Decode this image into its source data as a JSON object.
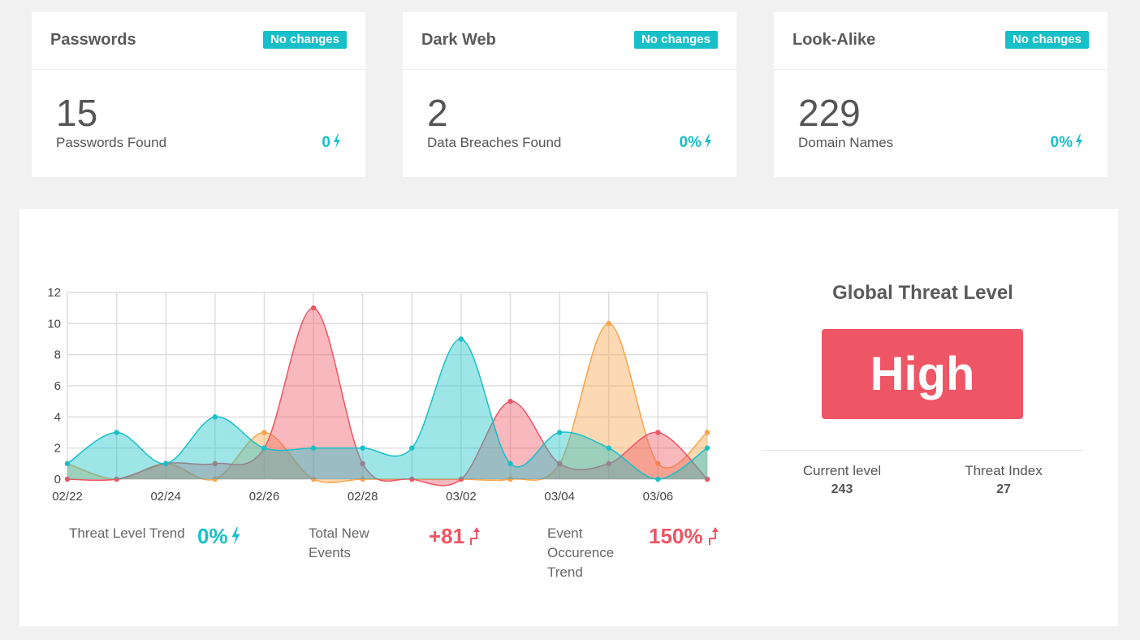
{
  "cards": [
    {
      "title": "Passwords",
      "badge": "No changes",
      "value": "15",
      "label": "Passwords Found",
      "delta": "0"
    },
    {
      "title": "Dark Web",
      "badge": "No changes",
      "value": "2",
      "label": "Data Breaches Found",
      "delta": "0%"
    },
    {
      "title": "Look-Alike",
      "badge": "No changes",
      "value": "229",
      "label": "Domain Names",
      "delta": "0%"
    }
  ],
  "stats": {
    "trend_label": "Threat Level Trend",
    "trend_value": "0%",
    "events_label": "Total New Events",
    "events_value": "+81",
    "occurrence_label": "Event Occurence Trend",
    "occurrence_value": "150%"
  },
  "threat": {
    "title": "Global Threat Level",
    "level": "High",
    "current_label": "Current level",
    "current_value": "243",
    "index_label": "Threat Index",
    "index_value": "27"
  },
  "colors": {
    "cyan": "#17c0c8",
    "red": "#ee5565",
    "orange": "#f7a44b"
  },
  "chart_data": {
    "type": "area",
    "x": [
      "02/22",
      "02/23",
      "02/24",
      "02/25",
      "02/26",
      "02/27",
      "02/28",
      "03/01",
      "03/02",
      "03/03",
      "03/04",
      "03/05",
      "03/06",
      "03/07"
    ],
    "x_tick_labels": [
      "02/22",
      "02/24",
      "02/26",
      "02/28",
      "03/02",
      "03/04",
      "03/06"
    ],
    "ylim": [
      0,
      12
    ],
    "y_ticks": [
      0,
      2,
      4,
      6,
      8,
      10,
      12
    ],
    "grid": true,
    "series": [
      {
        "color": "#17c0c8",
        "values": [
          1,
          3,
          1,
          4,
          2,
          2,
          2,
          2,
          9,
          1,
          3,
          2,
          0,
          2
        ]
      },
      {
        "color": "#ee5565",
        "values": [
          0,
          0,
          1,
          1,
          2,
          11,
          1,
          0,
          0,
          5,
          1,
          1,
          3,
          0
        ]
      },
      {
        "color": "#f7a44b",
        "values": [
          1,
          0,
          1,
          0,
          3,
          0,
          0,
          0,
          0,
          0,
          1,
          10,
          1,
          3
        ]
      }
    ]
  }
}
